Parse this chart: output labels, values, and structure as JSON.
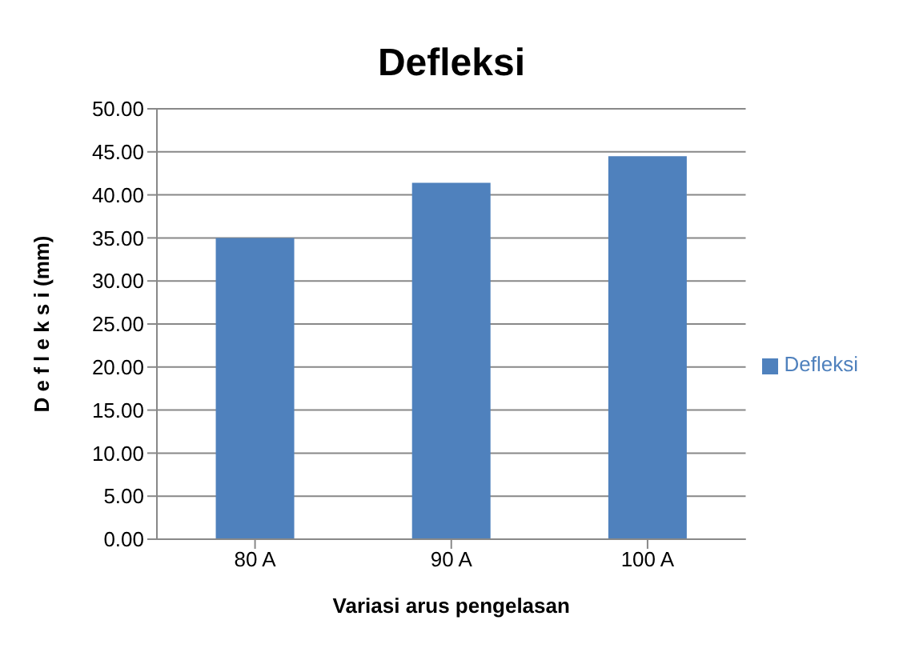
{
  "chart_data": {
    "type": "bar",
    "title": "Defleksi",
    "xlabel": "Variasi arus pengelasan",
    "ylabel": "D e f l e k s i (mm)",
    "categories": [
      "80 A",
      "90 A",
      "100 A"
    ],
    "series": [
      {
        "name": "Defleksi",
        "color": "#4f81bd",
        "values": [
          35.0,
          41.4,
          44.5
        ]
      }
    ],
    "ylim": [
      0,
      50
    ],
    "yticks": [
      {
        "value": 0,
        "label": "0.00"
      },
      {
        "value": 5,
        "label": "5.00"
      },
      {
        "value": 10,
        "label": "10.00"
      },
      {
        "value": 15,
        "label": "15.00"
      },
      {
        "value": 20,
        "label": "20.00"
      },
      {
        "value": 25,
        "label": "25.00"
      },
      {
        "value": 30,
        "label": "30.00"
      },
      {
        "value": 35,
        "label": "35.00"
      },
      {
        "value": 40,
        "label": "40.00"
      },
      {
        "value": 45,
        "label": "45.00"
      },
      {
        "value": 50,
        "label": "50.00"
      }
    ],
    "grid": "y",
    "legend": "right"
  }
}
